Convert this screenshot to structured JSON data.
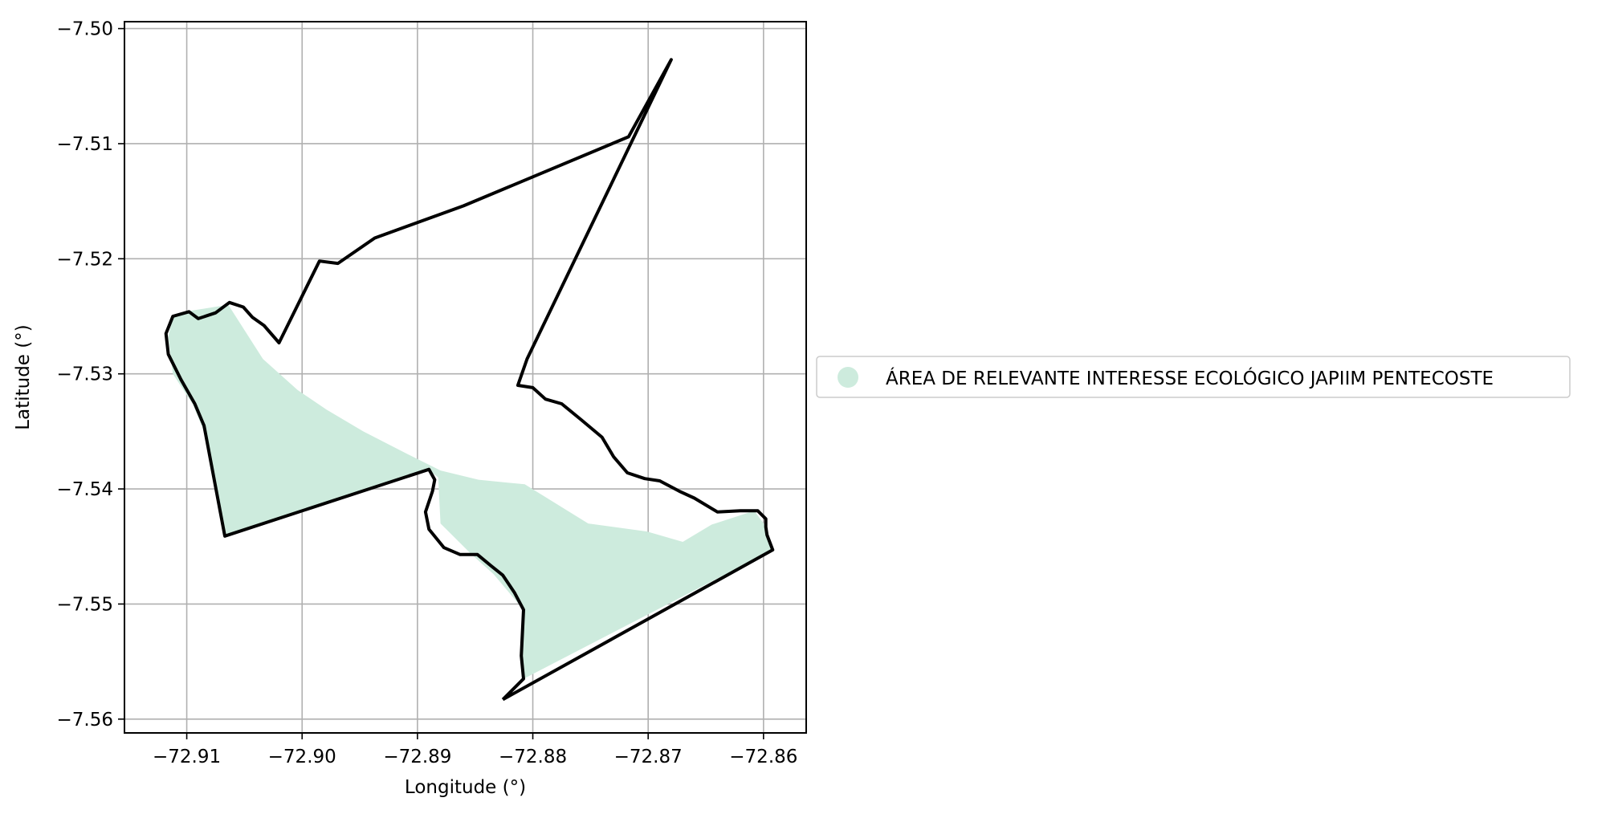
{
  "chart_data": {
    "type": "map",
    "xlabel": "Longitude (°)",
    "ylabel": "Latitude (°)",
    "xlim": [
      -72.9154,
      -72.8563
    ],
    "ylim": [
      -7.5612,
      -7.4994
    ],
    "x_ticks": [
      -72.91,
      -72.9,
      -72.89,
      -72.88,
      -72.87,
      -72.86
    ],
    "y_ticks": [
      -7.5,
      -7.51,
      -7.52,
      -7.53,
      -7.54,
      -7.55,
      -7.56
    ],
    "x_tick_labels": [
      "−72.91",
      "−72.90",
      "−72.89",
      "−72.88",
      "−72.87",
      "−72.86"
    ],
    "y_tick_labels": [
      "−7.50",
      "−7.51",
      "−7.52",
      "−7.53",
      "−7.54",
      "−7.55",
      "−7.56"
    ],
    "grid": true,
    "legend_position": "right",
    "legend": [
      {
        "label": "ÁREA DE RELEVANTE INTERESSE ECOLÓGICO JAPIIM PENTECOSTE",
        "color": "#cdebdd"
      }
    ],
    "fill_color": "#cdebdd",
    "outline_color": "#000000",
    "filled_region": [
      [
        -72.9102,
        -7.5246
      ],
      [
        -72.9064,
        -7.524
      ],
      [
        -72.9034,
        -7.5287
      ],
      [
        -72.9004,
        -7.5314
      ],
      [
        -72.8979,
        -7.5331
      ],
      [
        -72.8947,
        -7.535
      ],
      [
        -72.891,
        -7.5369
      ],
      [
        -72.888,
        -7.5384
      ],
      [
        -72.8847,
        -7.5392
      ],
      [
        -72.8807,
        -7.5396
      ],
      [
        -72.8752,
        -7.543
      ],
      [
        -72.8701,
        -7.5437
      ],
      [
        -72.867,
        -7.5446
      ],
      [
        -72.8645,
        -7.5431
      ],
      [
        -72.8608,
        -7.5419
      ],
      [
        -72.8597,
        -7.5434
      ],
      [
        -72.8592,
        -7.5453
      ],
      [
        -72.8808,
        -7.5565
      ],
      [
        -72.881,
        -7.5545
      ],
      [
        -72.8808,
        -7.5505
      ],
      [
        -72.8834,
        -7.5474
      ],
      [
        -72.8853,
        -7.5457
      ],
      [
        -72.888,
        -7.543
      ],
      [
        -72.8882,
        -7.539
      ],
      [
        -72.8891,
        -7.5383
      ],
      [
        -72.9067,
        -7.5441
      ],
      [
        -72.9085,
        -7.535
      ],
      [
        -72.9095,
        -7.5326
      ],
      [
        -72.9112,
        -7.53
      ],
      [
        -72.9116,
        -7.5268
      ],
      [
        -72.9112,
        -7.525
      ]
    ],
    "outline_path": [
      [
        -72.8826,
        -7.5583
      ],
      [
        -72.8808,
        -7.5565
      ],
      [
        -72.881,
        -7.5545
      ],
      [
        -72.8808,
        -7.5505
      ],
      [
        -72.8816,
        -7.549
      ],
      [
        -72.8826,
        -7.5475
      ],
      [
        -72.8836,
        -7.5467
      ],
      [
        -72.8848,
        -7.5457
      ],
      [
        -72.8863,
        -7.5457
      ],
      [
        -72.8877,
        -7.5451
      ],
      [
        -72.889,
        -7.5435
      ],
      [
        -72.8893,
        -7.542
      ],
      [
        -72.8887,
        -7.5402
      ],
      [
        -72.8885,
        -7.5392
      ],
      [
        -72.889,
        -7.5383
      ],
      [
        -72.9067,
        -7.5441
      ],
      [
        -72.9085,
        -7.5345
      ],
      [
        -72.9093,
        -7.5326
      ],
      [
        -72.9105,
        -7.5305
      ],
      [
        -72.9116,
        -7.5283
      ],
      [
        -72.9118,
        -7.5265
      ],
      [
        -72.9112,
        -7.525
      ],
      [
        -72.9098,
        -7.5246
      ],
      [
        -72.909,
        -7.5252
      ],
      [
        -72.9075,
        -7.5247
      ],
      [
        -72.9063,
        -7.5238
      ],
      [
        -72.9051,
        -7.5242
      ],
      [
        -72.9043,
        -7.5251
      ],
      [
        -72.9033,
        -7.5258
      ],
      [
        -72.902,
        -7.5273
      ],
      [
        -72.8985,
        -7.5202
      ],
      [
        -72.8969,
        -7.5204
      ],
      [
        -72.8937,
        -7.5182
      ],
      [
        -72.886,
        -7.5154
      ],
      [
        -72.8717,
        -7.5094
      ],
      [
        -72.868,
        -7.5027
      ],
      [
        -72.8805,
        -7.5287
      ],
      [
        -72.8813,
        -7.531
      ],
      [
        -72.88,
        -7.5312
      ],
      [
        -72.8789,
        -7.5322
      ],
      [
        -72.8775,
        -7.5326
      ],
      [
        -72.8758,
        -7.534
      ],
      [
        -72.874,
        -7.5355
      ],
      [
        -72.873,
        -7.5372
      ],
      [
        -72.8718,
        -7.5386
      ],
      [
        -72.8703,
        -7.5391
      ],
      [
        -72.869,
        -7.5393
      ],
      [
        -72.8673,
        -7.5402
      ],
      [
        -72.866,
        -7.5408
      ],
      [
        -72.864,
        -7.542
      ],
      [
        -72.862,
        -7.5419
      ],
      [
        -72.8605,
        -7.5419
      ],
      [
        -72.8598,
        -7.5426
      ],
      [
        -72.8598,
        -7.5433
      ],
      [
        -72.8597,
        -7.544
      ],
      [
        -72.8592,
        -7.5453
      ],
      [
        -72.8826,
        -7.5583
      ]
    ]
  }
}
